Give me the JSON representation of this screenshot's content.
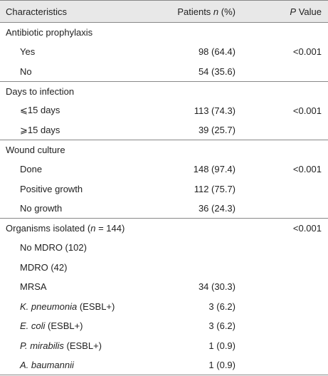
{
  "table": {
    "header": [
      [
        {
          "text": "Characteristics"
        }
      ],
      [
        {
          "text": "Patients "
        },
        {
          "text": "n",
          "italic": true
        },
        {
          "text": " (%)"
        }
      ],
      [
        {
          "text": "P",
          "italic": true
        },
        {
          "text": " Value"
        }
      ]
    ],
    "groups": [
      {
        "title": [
          {
            "text": "Antibiotic prophylaxis"
          }
        ],
        "items": [
          {
            "label": [
              {
                "text": "Yes"
              }
            ],
            "patients": "98 (64.4)",
            "p": "<0.001"
          },
          {
            "label": [
              {
                "text": "No"
              }
            ],
            "patients": "54 (35.6)"
          }
        ]
      },
      {
        "title": [
          {
            "text": "Days to infection"
          }
        ],
        "items": [
          {
            "label": [
              {
                "text": "⩽15 days"
              }
            ],
            "patients": "113 (74.3)",
            "p": "<0.001"
          },
          {
            "label": [
              {
                "text": "⩾15 days"
              }
            ],
            "patients": "39 (25.7)"
          }
        ]
      },
      {
        "title": [
          {
            "text": "Wound culture"
          }
        ],
        "items": [
          {
            "label": [
              {
                "text": "Done"
              }
            ],
            "patients": "148 (97.4)",
            "p": "<0.001"
          },
          {
            "label": [
              {
                "text": "Positive growth"
              }
            ],
            "patients": "112 (75.7)"
          },
          {
            "label": [
              {
                "text": "No growth"
              }
            ],
            "patients": "36 (24.3)"
          }
        ]
      },
      {
        "title": [
          {
            "text": "Organisms isolated ("
          },
          {
            "text": "n",
            "italic": true
          },
          {
            "text": " = 144)"
          }
        ],
        "p": "<0.001",
        "items": [
          {
            "label": [
              {
                "text": "No MDRO (102)"
              }
            ]
          },
          {
            "label": [
              {
                "text": "MDRO (42)"
              }
            ]
          },
          {
            "label": [
              {
                "text": "MRSA"
              }
            ],
            "patients": "34 (30.3)"
          },
          {
            "label": [
              {
                "text": "K. pneumonia",
                "italic": true
              },
              {
                "text": " (ESBL+)"
              }
            ],
            "patients": "3 (6.2)"
          },
          {
            "label": [
              {
                "text": "E. coli",
                "italic": true
              },
              {
                "text": " (ESBL+)"
              }
            ],
            "patients": "3 (6.2)"
          },
          {
            "label": [
              {
                "text": "P. mirabilis",
                "italic": true
              },
              {
                "text": " (ESBL+)"
              }
            ],
            "patients": "1 (0.9)"
          },
          {
            "label": [
              {
                "text": "A. baumannii",
                "italic": true
              }
            ],
            "patients": "1 (0.9)"
          }
        ]
      }
    ]
  }
}
